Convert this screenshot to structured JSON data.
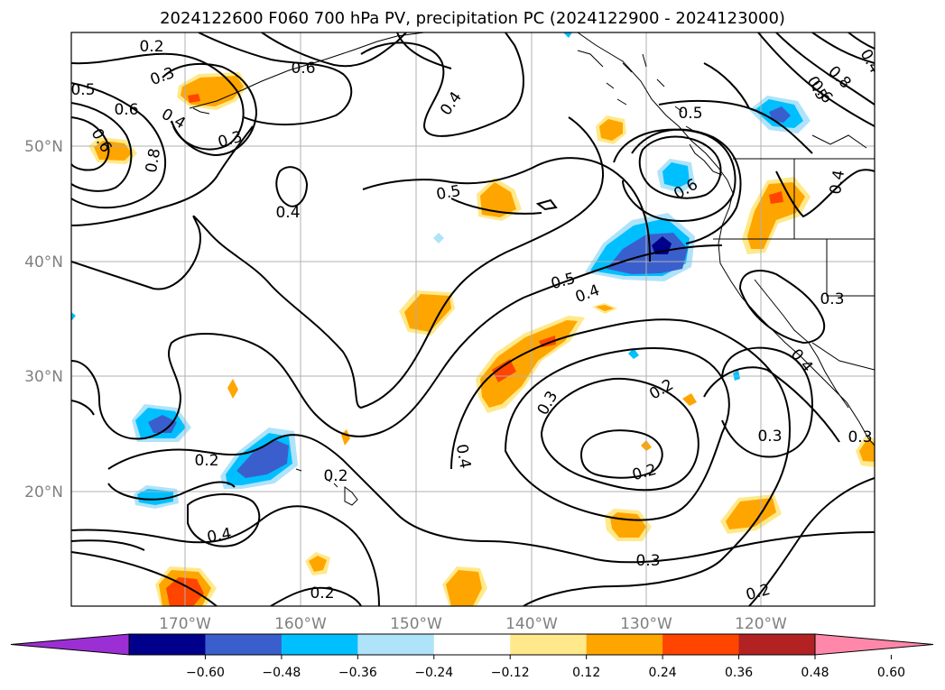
{
  "title": "2024122600 F060 700 hPa PV, precipitation PC (2024122900 - 2024123000)",
  "latitude_labels": [
    "50°N",
    "40°N",
    "30°N",
    "20°N"
  ],
  "longitude_labels": [
    "170°W",
    "160°W",
    "150°W",
    "140°W",
    "130°W",
    "120°W"
  ],
  "colorbar": {
    "ticks": [
      "−0.60",
      "−0.48",
      "−0.36",
      "−0.24",
      "−0.12",
      "0.12",
      "0.24",
      "0.36",
      "0.48",
      "0.60"
    ],
    "colors": [
      "#9c2fd4",
      "#00008b",
      "#3a5fcd",
      "#00bfff",
      "#afe3fa",
      "#ffffff",
      "#ffe98a",
      "#ffa500",
      "#ff4500",
      "#b22222",
      "#ff88aa"
    ]
  },
  "contour_labels": [
    "0.2",
    "0.3",
    "0.6",
    "0.5",
    "0.6",
    "0.4",
    "0.3",
    "0.8",
    "0.6",
    "0.4",
    "0.5",
    "0.5",
    "0.4",
    "0.6",
    "0.4",
    "0.8",
    "0.6",
    "0.5",
    "0.4",
    "0.3",
    "0.5",
    "0.4",
    "0.3",
    "0.2",
    "0.3",
    "0.2",
    "0.4",
    "0.2",
    "0.2",
    "0.4",
    "0.2",
    "0.3",
    "0.2",
    "0.4",
    "0.3"
  ]
}
